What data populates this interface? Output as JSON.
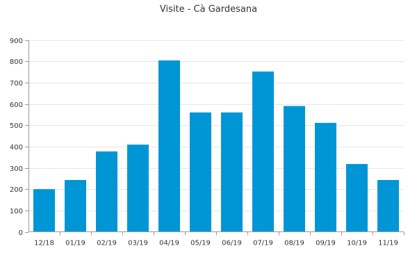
{
  "chart_data": {
    "type": "bar",
    "title": "Visite - Cà Gardesana",
    "xlabel": "",
    "ylabel": "",
    "categories": [
      "12/18",
      "01/19",
      "02/19",
      "03/19",
      "04/19",
      "05/19",
      "06/19",
      "07/19",
      "08/19",
      "09/19",
      "10/19",
      "11/19"
    ],
    "values": [
      200,
      243,
      377,
      409,
      804,
      560,
      560,
      752,
      590,
      511,
      318,
      243
    ],
    "ylim": [
      0,
      900
    ],
    "yticks": [
      0,
      100,
      200,
      300,
      400,
      500,
      600,
      700,
      800,
      900
    ],
    "grid": true,
    "legend": "none",
    "bar_color": "#0096d6"
  }
}
